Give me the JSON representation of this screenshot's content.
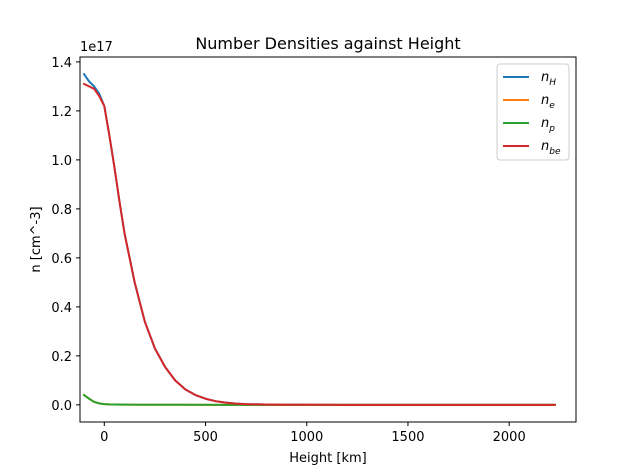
{
  "chart_data": {
    "type": "line",
    "title": "Number Densities against Height",
    "xlabel": "Height [km]",
    "ylabel": "n [cm^-3]",
    "y_offset_text": "1e17",
    "xlim": [
      -120,
      2330
    ],
    "ylim": [
      -7000000000000000.0,
      1.42e+17
    ],
    "x_ticks": [
      0,
      500,
      1000,
      1500,
      2000
    ],
    "x_tick_labels": [
      "0",
      "500",
      "1000",
      "1500",
      "2000"
    ],
    "y_ticks": [
      0,
      2e+16,
      4e+16,
      6e+16,
      8e+16,
      1e+17,
      1.2e+17,
      1.4e+17
    ],
    "y_tick_labels": [
      "0.0",
      "0.2",
      "0.4",
      "0.6",
      "0.8",
      "1.0",
      "1.2",
      "1.4"
    ],
    "grid": false,
    "legend_position": "top-right",
    "series": [
      {
        "name": "n_H",
        "label_base": "n",
        "label_sub": "H",
        "color": "#1f77b4",
        "x": [
          -100,
          -75,
          -50,
          -25,
          0,
          25,
          50,
          75,
          100,
          150,
          200,
          250,
          300,
          350,
          400,
          450,
          500,
          550,
          600,
          650,
          700,
          800,
          900,
          1000,
          1200,
          1500,
          1800,
          2000,
          2225
        ],
        "y": [
          1.35e+17,
          1.32e+17,
          1.3e+17,
          1.27e+17,
          1.22e+17,
          1.1e+17,
          9.7e+16,
          8.3e+16,
          7e+16,
          5e+16,
          3.4e+16,
          2.3e+16,
          1.55e+16,
          1e+16,
          6300000000000000.0,
          4000000000000000.0,
          2500000000000000.0,
          1500000000000000.0,
          900000000000000.0,
          500000000000000.0,
          300000000000000.0,
          120000000000000.0,
          50000000000000.0,
          20000000000000.0,
          5000000000000.0,
          1000000000000.0,
          0,
          0,
          0
        ]
      },
      {
        "name": "n_e",
        "label_base": "n",
        "label_sub": "e",
        "color": "#ff7f0e",
        "x": [
          -100,
          -75,
          -50,
          -25,
          0,
          25,
          50,
          100,
          200,
          400,
          600,
          800,
          1000,
          1500,
          2000,
          2225
        ],
        "y": [
          4000000000000000.0,
          2500000000000000.0,
          1200000000000000.0,
          600000000000000.0,
          300000000000000.0,
          200000000000000.0,
          150000000000000.0,
          100000000000000.0,
          50000000000000.0,
          20000000000000.0,
          10000000000000.0,
          5000000000000.0,
          0,
          0,
          0,
          0
        ]
      },
      {
        "name": "n_p",
        "label_base": "n",
        "label_sub": "p",
        "color": "#2ca02c",
        "x": [
          -100,
          -75,
          -50,
          -25,
          0,
          25,
          50,
          100,
          200,
          400,
          600,
          800,
          1000,
          1500,
          2000,
          2225
        ],
        "y": [
          4000000000000000.0,
          2500000000000000.0,
          1200000000000000.0,
          600000000000000.0,
          300000000000000.0,
          200000000000000.0,
          150000000000000.0,
          100000000000000.0,
          50000000000000.0,
          20000000000000.0,
          10000000000000.0,
          5000000000000.0,
          0,
          0,
          0,
          0
        ]
      },
      {
        "name": "n_be",
        "label_base": "n",
        "label_sub": "be",
        "color": "#d62728",
        "x": [
          -100,
          -75,
          -50,
          -25,
          0,
          25,
          50,
          75,
          100,
          150,
          200,
          250,
          300,
          350,
          400,
          450,
          500,
          550,
          600,
          650,
          700,
          800,
          900,
          1000,
          1200,
          1500,
          1800,
          2000,
          2225
        ],
        "y": [
          1.31e+17,
          1.3e+17,
          1.29e+17,
          1.26e+17,
          1.22e+17,
          1.1e+17,
          9.7e+16,
          8.3e+16,
          7e+16,
          5e+16,
          3.4e+16,
          2.3e+16,
          1.55e+16,
          1e+16,
          6300000000000000.0,
          4000000000000000.0,
          2500000000000000.0,
          1500000000000000.0,
          900000000000000.0,
          500000000000000.0,
          300000000000000.0,
          120000000000000.0,
          50000000000000.0,
          20000000000000.0,
          5000000000000.0,
          1000000000000.0,
          0,
          0,
          0
        ]
      }
    ]
  }
}
